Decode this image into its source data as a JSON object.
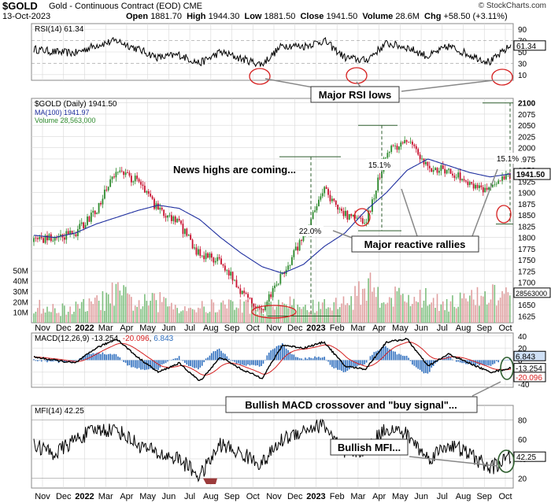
{
  "header": {
    "symbol": "$GOLD",
    "name": "Gold - Continuous Contract (EOD)",
    "exchange": "CME",
    "copyright": "© StockCharts.com",
    "date": "13-Oct-2023",
    "open_label": "Open",
    "open": "1881.70",
    "high_label": "High",
    "high": "1944.30",
    "low_label": "Low",
    "low": "1881.50",
    "close_label": "Close",
    "close": "1941.50",
    "volume_label": "Volume",
    "volume": "28.6M",
    "chg_label": "Chg",
    "chg": "+58.50 (+3.11%)"
  },
  "colors": {
    "up": "#2e8b2e",
    "down": "#c8102e",
    "ma": "#1f2f9f",
    "volume": "#7fbf7f",
    "macd": "#000000",
    "signal": "#d62020",
    "hist": "#2f6fbf",
    "grid": "#d8d8d8",
    "annotation": "#d62020",
    "callout_border": "#2e5e2e"
  },
  "panels": {
    "rsi": {
      "label": "RSI(14) 61.34",
      "ticks": [
        "90",
        "70",
        "50",
        "30",
        "10"
      ],
      "current": "61.34",
      "annotation": "Major RSI lows"
    },
    "price": {
      "legend": [
        "$GOLD (Daily) 1941.50",
        "MA(100) 1941.97",
        "Volume 28,563,000"
      ],
      "ticks": [
        "2100",
        "2075",
        "2050",
        "2025",
        "2000",
        "1975",
        "1950",
        "1925",
        "1900",
        "1875",
        "1850",
        "1825",
        "1800",
        "1775",
        "1750",
        "1725",
        "1700",
        "1675",
        "1650",
        "1625"
      ],
      "volume_ticks": [
        "50M",
        "40M",
        "30M",
        "20M",
        "10M"
      ],
      "current_price": "1941.50",
      "current_volume": "28563000",
      "annotations": {
        "news": "News highs are coming...",
        "rallies": "Major reactive rallies",
        "pct1": "22.0%",
        "pct2": "15.1%",
        "pct3": "15.1%"
      }
    },
    "macd": {
      "label_a": "MACD(12,26,9)",
      "label_b": "-13.254",
      "label_c": "-20.096",
      "label_d": "6.843",
      "ticks": [
        "40",
        "20",
        "0",
        "-20",
        "-40"
      ],
      "tags": [
        "6.843",
        "-13.254",
        "-20.096"
      ],
      "annotation": "Bullish MACD crossover and \"buy signal\"..."
    },
    "mfi": {
      "label": "MFI(14) 42.25",
      "ticks": [
        "80",
        "60",
        "40",
        "20"
      ],
      "current": "42.25",
      "annotation": "Bullish MFI..."
    }
  },
  "x_axis": [
    {
      "label": "Nov",
      "bold": false
    },
    {
      "label": "Dec",
      "bold": false
    },
    {
      "label": "2022",
      "bold": true
    },
    {
      "label": "Mar",
      "bold": false
    },
    {
      "label": "Apr",
      "bold": false
    },
    {
      "label": "May",
      "bold": false
    },
    {
      "label": "Jun",
      "bold": false
    },
    {
      "label": "Jul",
      "bold": false
    },
    {
      "label": "Aug",
      "bold": false
    },
    {
      "label": "Sep",
      "bold": false
    },
    {
      "label": "Oct",
      "bold": false
    },
    {
      "label": "Nov",
      "bold": false
    },
    {
      "label": "Dec",
      "bold": false
    },
    {
      "label": "2023",
      "bold": true
    },
    {
      "label": "Feb",
      "bold": false
    },
    {
      "label": "Mar",
      "bold": false
    },
    {
      "label": "Apr",
      "bold": false
    },
    {
      "label": "May",
      "bold": false
    },
    {
      "label": "Jun",
      "bold": false
    },
    {
      "label": "Jul",
      "bold": false
    },
    {
      "label": "Aug",
      "bold": false
    },
    {
      "label": "Sep",
      "bold": false
    },
    {
      "label": "Oct",
      "bold": false
    }
  ],
  "chart_data": {
    "type": "line",
    "title": "$GOLD Gold - Continuous Contract (EOD) CME",
    "x": [
      "2021-11",
      "2021-12",
      "2022-01",
      "2022-02",
      "2022-03",
      "2022-04",
      "2022-05",
      "2022-06",
      "2022-07",
      "2022-08",
      "2022-09",
      "2022-10",
      "2022-11",
      "2022-12",
      "2023-01",
      "2023-02",
      "2023-03",
      "2023-04",
      "2023-05",
      "2023-06",
      "2023-07",
      "2023-08",
      "2023-09",
      "2023-10"
    ],
    "series": [
      {
        "name": "$GOLD (Daily)",
        "values": [
          1790,
          1800,
          1810,
          1860,
          1950,
          1925,
          1860,
          1830,
          1760,
          1750,
          1680,
          1640,
          1720,
          1800,
          1905,
          1850,
          1830,
          1990,
          2020,
          1955,
          1950,
          1920,
          1905,
          1941.5
        ]
      },
      {
        "name": "MA(100)",
        "values": [
          1805,
          1800,
          1810,
          1830,
          1845,
          1860,
          1872,
          1865,
          1840,
          1800,
          1765,
          1735,
          1720,
          1740,
          1780,
          1810,
          1860,
          1900,
          1950,
          1975,
          1960,
          1945,
          1935,
          1941.97
        ]
      },
      {
        "name": "Volume",
        "values": [
          16,
          12,
          14,
          18,
          28,
          18,
          20,
          16,
          14,
          16,
          18,
          12,
          20,
          14,
          16,
          18,
          34,
          26,
          24,
          22,
          20,
          22,
          25,
          28.6
        ]
      },
      {
        "name": "RSI(14)",
        "values": [
          55,
          50,
          48,
          62,
          70,
          55,
          40,
          45,
          30,
          50,
          38,
          28,
          62,
          60,
          70,
          40,
          35,
          65,
          58,
          42,
          60,
          45,
          32,
          61.34
        ]
      },
      {
        "name": "MACD(12,26,9)",
        "values": [
          5,
          0,
          -5,
          20,
          35,
          5,
          -20,
          -5,
          -35,
          5,
          -15,
          -30,
          25,
          20,
          30,
          -10,
          -15,
          30,
          35,
          -10,
          10,
          -5,
          -20,
          -13.254
        ]
      },
      {
        "name": "MFI(14)",
        "values": [
          55,
          45,
          60,
          70,
          70,
          55,
          45,
          40,
          22,
          55,
          45,
          35,
          60,
          70,
          75,
          45,
          50,
          72,
          65,
          40,
          55,
          45,
          30,
          42.25
        ]
      }
    ],
    "ylim_price": [
      1625,
      2100
    ],
    "ylim_rsi": [
      10,
      90
    ],
    "ylim_macd": [
      -40,
      40
    ],
    "ylim_mfi": [
      20,
      80
    ],
    "grid": true
  }
}
